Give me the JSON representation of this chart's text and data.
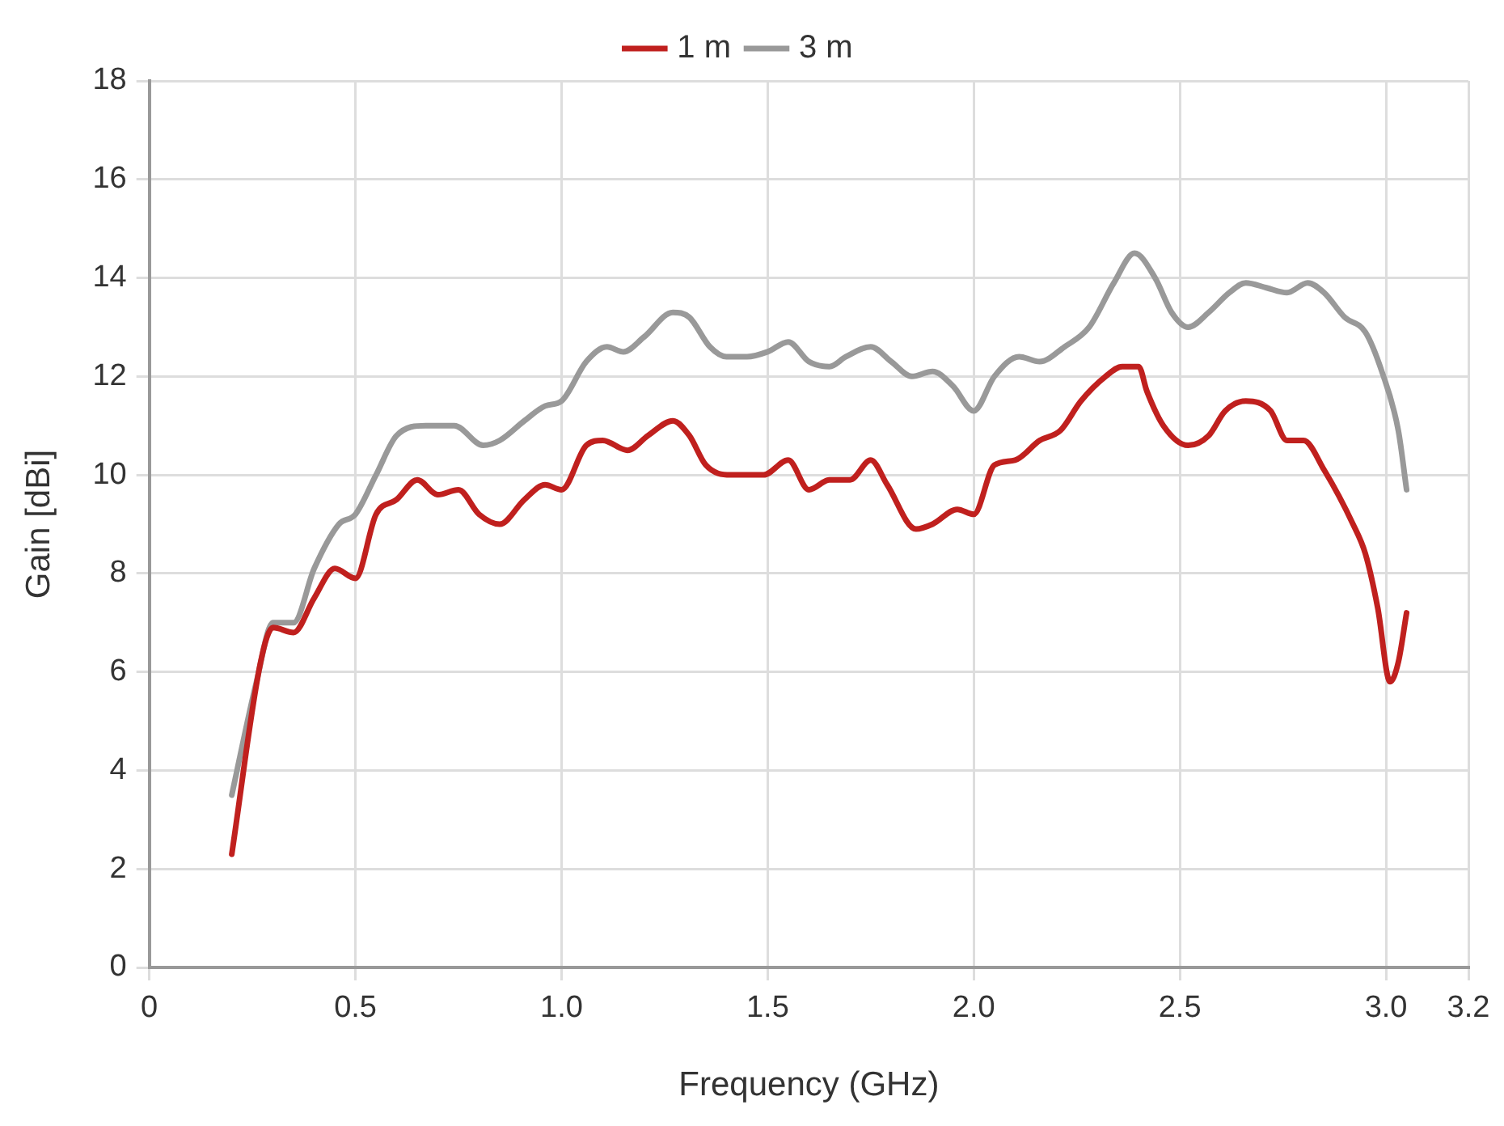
{
  "chart_data": {
    "type": "line",
    "xlabel": "Frequency (GHz)",
    "ylabel": "Gain [dBi]",
    "xlim": [
      0,
      3.2
    ],
    "xticks": [
      0,
      0.5,
      {
        "value": 1,
        "label": "1.0"
      },
      1.5,
      {
        "value": 2,
        "label": "2.0"
      },
      2.5,
      {
        "value": 3,
        "label": "3.0"
      },
      3.2
    ],
    "ylim": [
      0,
      18
    ],
    "yticks": [
      0,
      2,
      4,
      6,
      8,
      10,
      12,
      14,
      16,
      18
    ],
    "grid": true,
    "legend": "top",
    "marker": "none",
    "line_style": "solid",
    "series": [
      {
        "name": "1 m",
        "color": "#c0201e",
        "x": [
          0.2,
          0.27,
          0.3,
          0.35,
          0.4,
          0.45,
          0.5,
          0.55,
          0.6,
          0.65,
          0.7,
          0.75,
          0.8,
          0.85,
          0.91,
          0.96,
          1.0,
          1.06,
          1.1,
          1.16,
          1.21,
          1.27,
          1.31,
          1.35,
          1.41,
          1.49,
          1.55,
          1.6,
          1.65,
          1.7,
          1.75,
          1.79,
          1.86,
          1.9,
          1.96,
          2.0,
          2.05,
          2.1,
          2.16,
          2.21,
          2.26,
          2.32,
          2.36,
          2.4,
          2.42,
          2.46,
          2.52,
          2.57,
          2.61,
          2.66,
          2.72,
          2.76,
          2.8,
          2.85,
          2.92,
          2.95,
          2.98,
          3.01,
          3.03,
          3.05
        ],
        "values": [
          2.3,
          6.2,
          6.9,
          6.8,
          7.5,
          8.1,
          7.9,
          9.2,
          9.5,
          9.9,
          9.6,
          9.7,
          9.2,
          9.0,
          9.5,
          9.8,
          9.7,
          10.6,
          10.7,
          10.5,
          10.8,
          11.1,
          10.8,
          10.2,
          10.0,
          10.0,
          10.3,
          9.7,
          9.9,
          9.9,
          10.3,
          9.8,
          8.9,
          9.0,
          9.3,
          9.2,
          10.2,
          10.3,
          10.7,
          10.9,
          11.5,
          12.0,
          12.2,
          12.2,
          11.7,
          11.0,
          10.6,
          10.8,
          11.3,
          11.5,
          11.3,
          10.7,
          10.7,
          10.1,
          9.0,
          8.4,
          7.3,
          5.8,
          6.2,
          7.2
        ]
      },
      {
        "name": "3 m",
        "color": "#999999",
        "x": [
          0.2,
          0.26,
          0.3,
          0.35,
          0.4,
          0.46,
          0.5,
          0.55,
          0.6,
          0.67,
          0.74,
          0.81,
          0.85,
          0.91,
          0.96,
          1.0,
          1.06,
          1.11,
          1.15,
          1.2,
          1.27,
          1.31,
          1.36,
          1.4,
          1.45,
          1.5,
          1.55,
          1.6,
          1.65,
          1.69,
          1.75,
          1.8,
          1.85,
          1.9,
          1.95,
          2.0,
          2.05,
          2.11,
          2.16,
          2.22,
          2.28,
          2.34,
          2.39,
          2.44,
          2.48,
          2.52,
          2.57,
          2.62,
          2.66,
          2.71,
          2.76,
          2.81,
          2.85,
          2.9,
          2.95,
          2.99,
          3.03,
          3.05
        ],
        "values": [
          3.5,
          5.8,
          7.0,
          7.0,
          8.1,
          9.0,
          9.2,
          10.0,
          10.8,
          11.0,
          11.0,
          10.6,
          10.7,
          11.1,
          11.4,
          11.5,
          12.3,
          12.6,
          12.5,
          12.8,
          13.3,
          13.2,
          12.6,
          12.4,
          12.4,
          12.5,
          12.7,
          12.3,
          12.2,
          12.4,
          12.6,
          12.3,
          12.0,
          12.1,
          11.8,
          11.3,
          12.0,
          12.4,
          12.3,
          12.6,
          13.0,
          13.9,
          14.5,
          14.0,
          13.3,
          13.0,
          13.3,
          13.7,
          13.9,
          13.8,
          13.7,
          13.9,
          13.7,
          13.2,
          12.9,
          12.1,
          10.9,
          9.7
        ]
      }
    ]
  }
}
